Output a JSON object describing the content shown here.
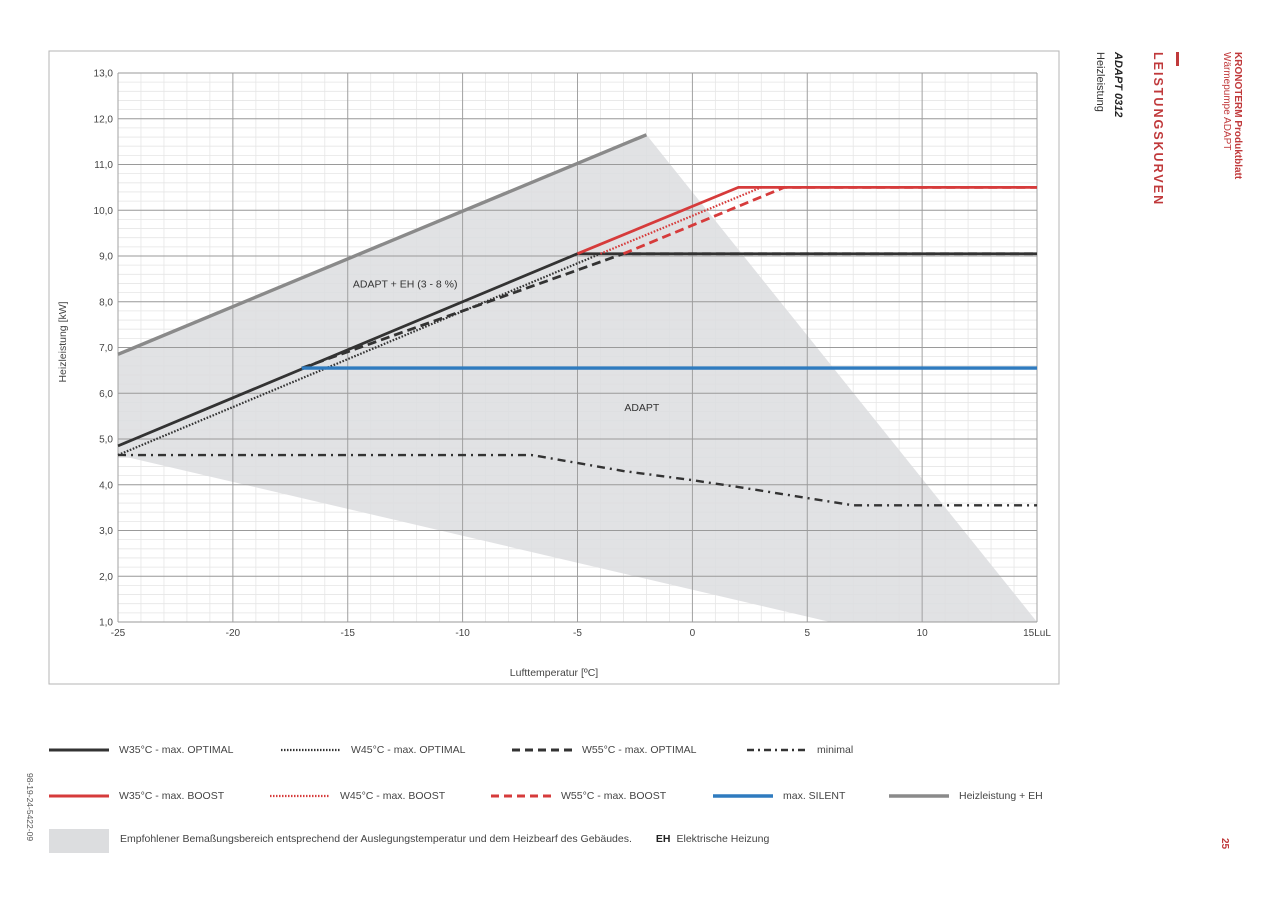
{
  "header": {
    "brand_title": "KRONOTERM Produktblatt",
    "brand_sub": "Wärmepumpe ADAPT",
    "section_title": "LEISTUNGSKURVEN",
    "model": "ADAPT 0312",
    "model_sub": "Heizleistung"
  },
  "footer": {
    "doc_number": "98-19-24-5422-09",
    "page_number": "25",
    "range_note": "Empfohlener Bemaßungsbereich entsprechend der Auslegungstemperatur und dem Heizbearf des Gebäudes.",
    "eh_abbr": "EH",
    "eh_label": "Elektrische Heizung"
  },
  "colors": {
    "dark": "#333333",
    "red": "#d63b3b",
    "blue": "#2f7bbf",
    "gray_line": "#8a8a8a",
    "area": "#dcdddf"
  },
  "chart_data": {
    "type": "line",
    "xlabel": "Lufttemperatur [ºC]",
    "ylabel": "Heizleistung [kW]",
    "xlim": [
      -25,
      15
    ],
    "ylim": [
      1,
      13
    ],
    "xticks": [
      "-25",
      "-20",
      "-15",
      "-10",
      "-5",
      "0",
      "5",
      "10",
      "15LuL"
    ],
    "yticks": [
      "1,0",
      "2,0",
      "3,0",
      "4,0",
      "5,0",
      "6,0",
      "7,0",
      "8,0",
      "9,0",
      "10,0",
      "11,0",
      "12,0",
      "13,0"
    ],
    "annotations": [
      {
        "text": "ADAPT + EH (3 - 8 %)",
        "x": -12.5,
        "y": 8.4
      },
      {
        "text": "ADAPT",
        "x": -2.2,
        "y": 5.7
      }
    ],
    "area": {
      "name": "Empfohlener Bemaßungsbereich",
      "points": [
        [
          -25,
          6.85
        ],
        [
          -2,
          11.65
        ],
        [
          15,
          1.0
        ],
        [
          6,
          1.0
        ],
        [
          -25,
          4.65
        ]
      ]
    },
    "series": [
      {
        "name": "W35°C - max. OPTIMAL",
        "style": "solid",
        "color": "dark",
        "points": [
          [
            -25,
            4.85
          ],
          [
            -5,
            9.05
          ],
          [
            15,
            9.05
          ]
        ]
      },
      {
        "name": "W45°C - max. OPTIMAL",
        "style": "dotted",
        "color": "dark",
        "points": [
          [
            -25,
            4.65
          ],
          [
            -4,
            9.05
          ],
          [
            15,
            9.05
          ]
        ]
      },
      {
        "name": "W55°C -  max. OPTIMAL",
        "style": "dashed",
        "color": "dark",
        "points": [
          [
            -17,
            6.55
          ],
          [
            -3,
            9.05
          ],
          [
            15,
            9.05
          ]
        ]
      },
      {
        "name": "minimal",
        "style": "dashdot",
        "color": "dark",
        "points": [
          [
            -25,
            4.65
          ],
          [
            -7,
            4.65
          ],
          [
            -3,
            4.3
          ],
          [
            0,
            4.1
          ],
          [
            2,
            3.95
          ],
          [
            7,
            3.55
          ],
          [
            15,
            3.55
          ]
        ]
      },
      {
        "name": "W35°C - max. BOOST",
        "style": "solid",
        "color": "red",
        "points": [
          [
            -5,
            9.05
          ],
          [
            2,
            10.5
          ],
          [
            15,
            10.5
          ]
        ]
      },
      {
        "name": "W45°C - max. BOOST",
        "style": "dotted",
        "color": "red",
        "points": [
          [
            -4,
            9.05
          ],
          [
            3,
            10.5
          ],
          [
            15,
            10.5
          ]
        ]
      },
      {
        "name": "W55°C - max. BOOST",
        "style": "dashed",
        "color": "red",
        "points": [
          [
            -3,
            9.05
          ],
          [
            4,
            10.5
          ],
          [
            15,
            10.5
          ]
        ]
      },
      {
        "name": "max. SILENT",
        "style": "solid",
        "color": "blue",
        "points": [
          [
            -17,
            6.55
          ],
          [
            15,
            6.55
          ]
        ]
      },
      {
        "name": "Heizleistung + EH",
        "style": "solid",
        "color": "gray_line",
        "points": [
          [
            -25,
            6.85
          ],
          [
            -2,
            11.65
          ]
        ]
      }
    ]
  }
}
